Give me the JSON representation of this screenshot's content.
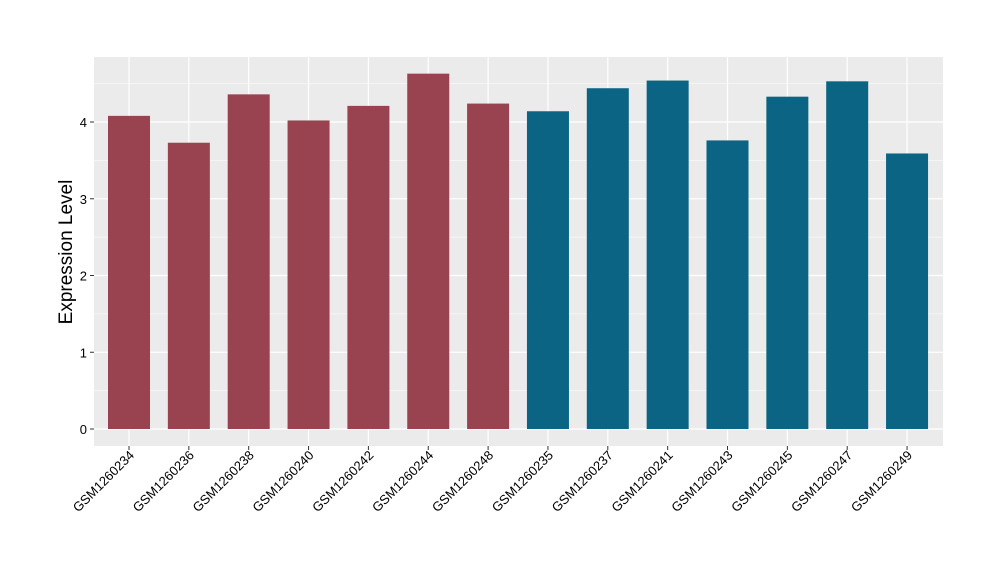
{
  "chart_data": {
    "type": "bar",
    "ylabel": "Expression Level",
    "ylim": [
      0,
      4.85
    ],
    "yticks": [
      0,
      1,
      2,
      3,
      4
    ],
    "ytick_labels": [
      "0",
      "1",
      "2",
      "3",
      "4"
    ],
    "grid": true,
    "categories": [
      "GSM1260234",
      "GSM1260236",
      "GSM1260238",
      "GSM1260240",
      "GSM1260242",
      "GSM1260244",
      "GSM1260248",
      "GSM1260235",
      "GSM1260237",
      "GSM1260241",
      "GSM1260243",
      "GSM1260245",
      "GSM1260247",
      "GSM1260249"
    ],
    "values": [
      4.08,
      3.73,
      4.36,
      4.02,
      4.21,
      4.63,
      4.24,
      4.14,
      4.44,
      4.54,
      3.76,
      4.33,
      4.53,
      3.59
    ],
    "bar_colors": [
      "#98434f",
      "#98434f",
      "#98434f",
      "#98434f",
      "#98434f",
      "#98434f",
      "#98434f",
      "#0b6484",
      "#0b6484",
      "#0b6484",
      "#0b6484",
      "#0b6484",
      "#0b6484",
      "#0b6484"
    ],
    "panel_background": "#ebebeb",
    "grid_color": "#ffffff"
  }
}
